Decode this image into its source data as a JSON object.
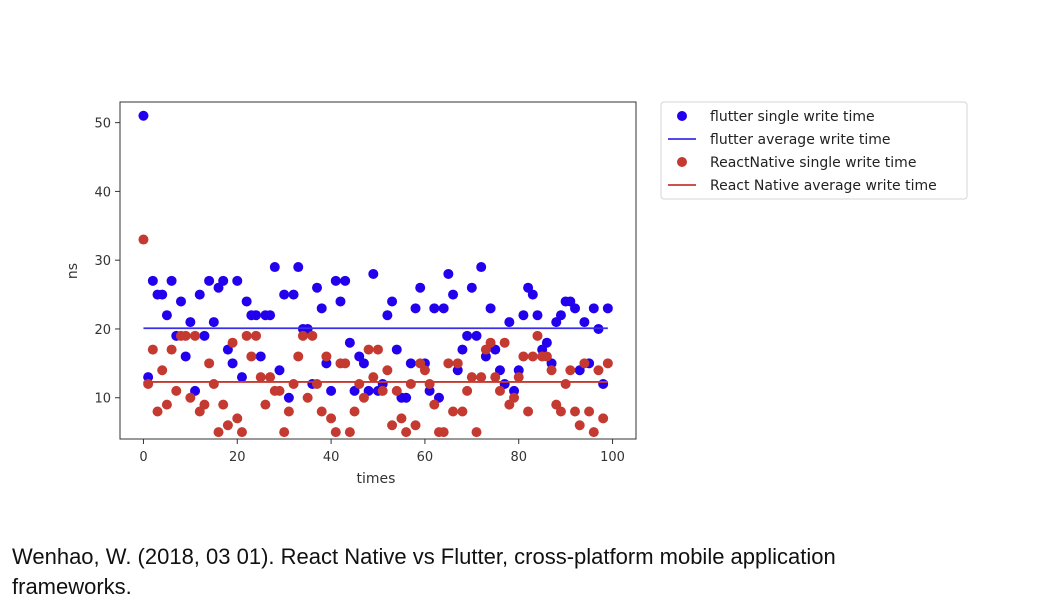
{
  "chart_data": {
    "type": "scatter",
    "xlabel": "times",
    "ylabel": "ns",
    "xlim": [
      -5,
      105
    ],
    "ylim": [
      4,
      53
    ],
    "xticks": [
      0,
      20,
      40,
      60,
      80,
      100
    ],
    "yticks": [
      10,
      20,
      30,
      40,
      50
    ],
    "grid": false,
    "legend_position": "outside-top-right",
    "series": [
      {
        "name": "flutter single write time",
        "kind": "points",
        "color": "#2200ee",
        "x": [
          0,
          1,
          2,
          3,
          4,
          5,
          6,
          7,
          8,
          9,
          10,
          11,
          12,
          13,
          14,
          15,
          16,
          17,
          18,
          19,
          20,
          21,
          22,
          23,
          24,
          25,
          26,
          27,
          28,
          29,
          30,
          31,
          32,
          33,
          34,
          35,
          36,
          37,
          38,
          39,
          40,
          41,
          42,
          43,
          44,
          45,
          46,
          47,
          48,
          49,
          50,
          51,
          52,
          53,
          54,
          55,
          56,
          57,
          58,
          59,
          60,
          61,
          62,
          63,
          64,
          65,
          66,
          67,
          68,
          69,
          70,
          71,
          72,
          73,
          74,
          75,
          76,
          77,
          78,
          79,
          80,
          81,
          82,
          83,
          84,
          85,
          86,
          87,
          88,
          89,
          90,
          91,
          92,
          93,
          94,
          95,
          96,
          97,
          98,
          99
        ],
        "y": [
          51,
          13,
          27,
          25,
          25,
          22,
          27,
          19,
          24,
          16,
          21,
          11,
          25,
          19,
          27,
          21,
          26,
          27,
          17,
          15,
          27,
          13,
          24,
          22,
          22,
          16,
          22,
          22,
          29,
          14,
          25,
          10,
          25,
          29,
          20,
          20,
          12,
          26,
          23,
          15,
          11,
          27,
          24,
          27,
          18,
          11,
          16,
          15,
          11,
          28,
          11,
          12,
          22,
          24,
          17,
          10,
          10,
          15,
          23,
          26,
          15,
          11,
          23,
          10,
          23,
          28,
          25,
          14,
          17,
          19,
          26,
          19,
          29,
          16,
          23,
          17,
          14,
          12,
          21,
          11,
          14,
          22,
          26,
          25,
          22,
          17,
          18,
          15,
          21,
          22,
          24,
          24,
          23,
          14,
          21,
          15,
          23,
          20,
          12,
          23
        ]
      },
      {
        "name": "flutter average write time",
        "kind": "line",
        "color": "#3b2ee8",
        "x": [
          0,
          99
        ],
        "y": [
          20.1,
          20.1
        ]
      },
      {
        "name": "ReactNative single write time",
        "kind": "points",
        "color": "#c43a31",
        "x": [
          0,
          1,
          2,
          3,
          4,
          5,
          6,
          7,
          8,
          9,
          10,
          11,
          12,
          13,
          14,
          15,
          16,
          17,
          18,
          19,
          20,
          21,
          22,
          23,
          24,
          25,
          26,
          27,
          28,
          29,
          30,
          31,
          32,
          33,
          34,
          35,
          36,
          37,
          38,
          39,
          40,
          41,
          42,
          43,
          44,
          45,
          46,
          47,
          48,
          49,
          50,
          51,
          52,
          53,
          54,
          55,
          56,
          57,
          58,
          59,
          60,
          61,
          62,
          63,
          64,
          65,
          66,
          67,
          68,
          69,
          70,
          71,
          72,
          73,
          74,
          75,
          76,
          77,
          78,
          79,
          80,
          81,
          82,
          83,
          84,
          85,
          86,
          87,
          88,
          89,
          90,
          91,
          92,
          93,
          94,
          95,
          96,
          97,
          98,
          99
        ],
        "y": [
          33,
          12,
          17,
          8,
          14,
          9,
          17,
          11,
          19,
          19,
          10,
          19,
          8,
          9,
          15,
          12,
          5,
          9,
          6,
          18,
          7,
          5,
          19,
          16,
          19,
          13,
          9,
          13,
          11,
          11,
          5,
          8,
          12,
          16,
          19,
          10,
          19,
          12,
          8,
          16,
          7,
          5,
          15,
          15,
          5,
          8,
          12,
          10,
          17,
          13,
          17,
          11,
          14,
          6,
          11,
          7,
          5,
          12,
          6,
          15,
          14,
          12,
          9,
          5,
          5,
          15,
          8,
          15,
          8,
          11,
          13,
          5,
          13,
          17,
          18,
          13,
          11,
          18,
          9,
          10,
          13,
          16,
          8,
          16,
          19,
          16,
          16,
          14,
          9,
          8,
          12,
          14,
          8,
          6,
          15,
          8,
          5,
          14,
          7,
          15
        ]
      },
      {
        "name": "React Native average write time",
        "kind": "line",
        "color": "#c43a31",
        "x": [
          0,
          99
        ],
        "y": [
          12.3,
          12.3
        ]
      }
    ]
  },
  "caption": {
    "line1": "Wenhao, W. (2018, 03 01). React Native vs Flutter, cross-platform mobile application",
    "line2": "frameworks."
  }
}
